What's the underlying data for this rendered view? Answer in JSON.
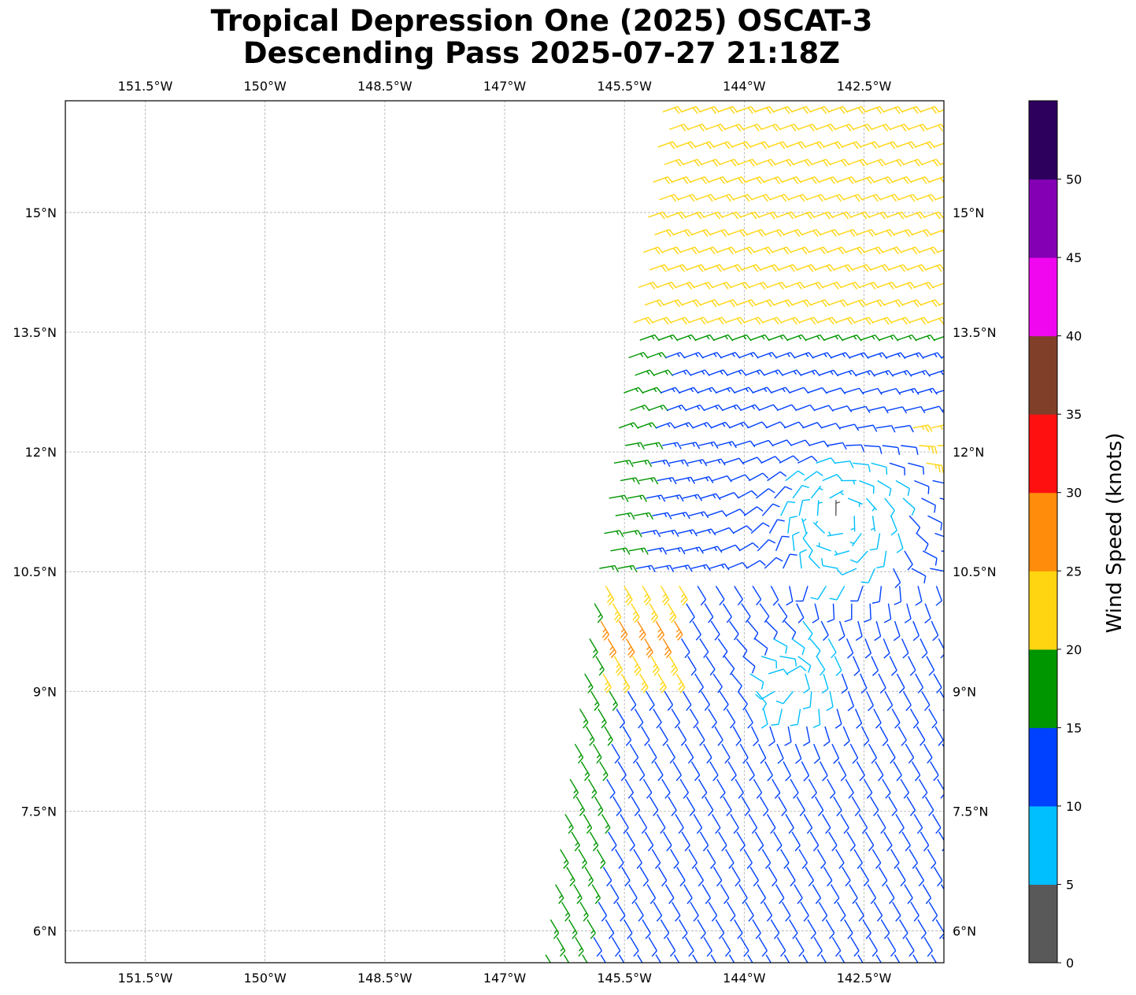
{
  "title": {
    "line1": "Tropical Depression One (2025) OSCAT-3",
    "line2": "Descending Pass 2025-07-27 21:18Z"
  },
  "map": {
    "lon_range": [
      -152.5,
      -141.5
    ],
    "lat_range": [
      5.6,
      16.4
    ],
    "lon_ticks": [
      {
        "value": -151.5,
        "label": "151.5°W"
      },
      {
        "value": -150,
        "label": "150°W"
      },
      {
        "value": -148.5,
        "label": "148.5°W"
      },
      {
        "value": -147,
        "label": "147°W"
      },
      {
        "value": -145.5,
        "label": "145.5°W"
      },
      {
        "value": -144,
        "label": "144°W"
      },
      {
        "value": -142.5,
        "label": "142.5°W"
      }
    ],
    "lat_ticks": [
      {
        "value": 6,
        "label": "6°N"
      },
      {
        "value": 7.5,
        "label": "7.5°N"
      },
      {
        "value": 9,
        "label": "9°N"
      },
      {
        "value": 10.5,
        "label": "10.5°N"
      },
      {
        "value": 12,
        "label": "12°N"
      },
      {
        "value": 13.5,
        "label": "13.5°N"
      },
      {
        "value": 15,
        "label": "15°N"
      }
    ],
    "gridlines": true,
    "swath": "right side of map, west edge from about 146.5°W at 5.6°N to about 145°W at 16.4°N",
    "low_center_approx": {
      "lon": -142.8,
      "lat": 11.2
    },
    "secondary_low_approx": {
      "lon": -143.4,
      "lat": 9.2
    },
    "symbol": "wind barbs (knots)"
  },
  "colorbar": {
    "label": "Wind Speed (knots)",
    "bins": [
      {
        "min": 0,
        "max": 5,
        "color": "#595959"
      },
      {
        "min": 5,
        "max": 10,
        "color": "#00bfff"
      },
      {
        "min": 10,
        "max": 15,
        "color": "#0040ff"
      },
      {
        "min": 15,
        "max": 20,
        "color": "#009600"
      },
      {
        "min": 20,
        "max": 25,
        "color": "#ffd511"
      },
      {
        "min": 25,
        "max": 30,
        "color": "#ff8c0a"
      },
      {
        "min": 30,
        "max": 35,
        "color": "#ff1010"
      },
      {
        "min": 35,
        "max": 40,
        "color": "#7f3f28"
      },
      {
        "min": 40,
        "max": 45,
        "color": "#f007f0"
      },
      {
        "min": 45,
        "max": 50,
        "color": "#8400b4"
      },
      {
        "min": 50,
        "max": 55,
        "color": "#2e005e"
      }
    ],
    "tick_labels": [
      "0",
      "5",
      "10",
      "15",
      "20",
      "25",
      "30",
      "35",
      "40",
      "45",
      "50"
    ]
  }
}
